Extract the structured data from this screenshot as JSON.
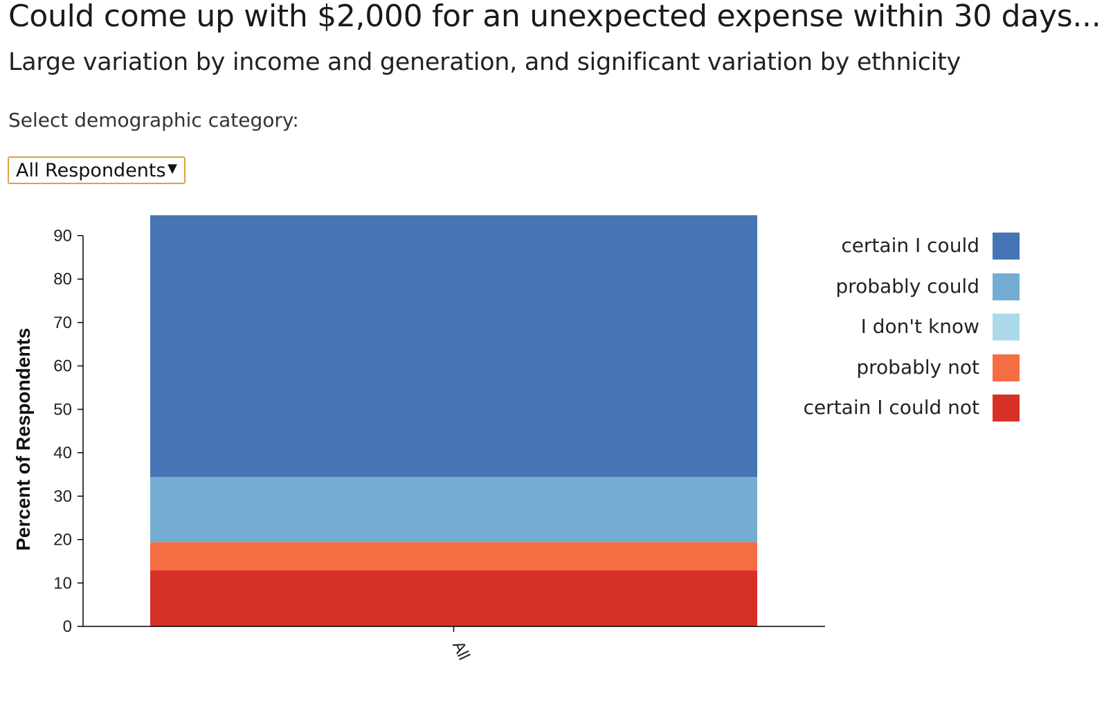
{
  "header": {
    "title": "Could come up with $2,000 for an unexpected expense within 30 days...",
    "subtitle": "Large variation by income and generation, and significant variation by ethnicity"
  },
  "selector": {
    "label": "Select demographic category:",
    "selected": "All Respondents",
    "arrow_icon": "triangle-down-icon"
  },
  "chart_data": {
    "type": "bar",
    "stacked": true,
    "categories": [
      "All"
    ],
    "series": [
      {
        "name": "certain I could not",
        "color": "#d73027",
        "values": [
          12.9
        ]
      },
      {
        "name": "probably not",
        "color": "#f46d43",
        "values": [
          6.5
        ]
      },
      {
        "name": "I don't know",
        "color": "#abd9e9",
        "values": [
          0
        ]
      },
      {
        "name": "probably could",
        "color": "#74add1",
        "values": [
          15.0
        ]
      },
      {
        "name": "certain I could",
        "color": "#4575b4",
        "values": [
          60.3
        ]
      }
    ],
    "yticks": [
      0,
      10,
      20,
      30,
      40,
      50,
      60,
      70,
      80,
      90
    ],
    "ylim": [
      0,
      94.7
    ],
    "ylabel": "Percent of Respondents",
    "xlabel": "",
    "grid": false,
    "legend_position": "right",
    "legend_order": [
      "certain I could",
      "probably could",
      "I don't know",
      "probably not",
      "certain I could not"
    ]
  }
}
